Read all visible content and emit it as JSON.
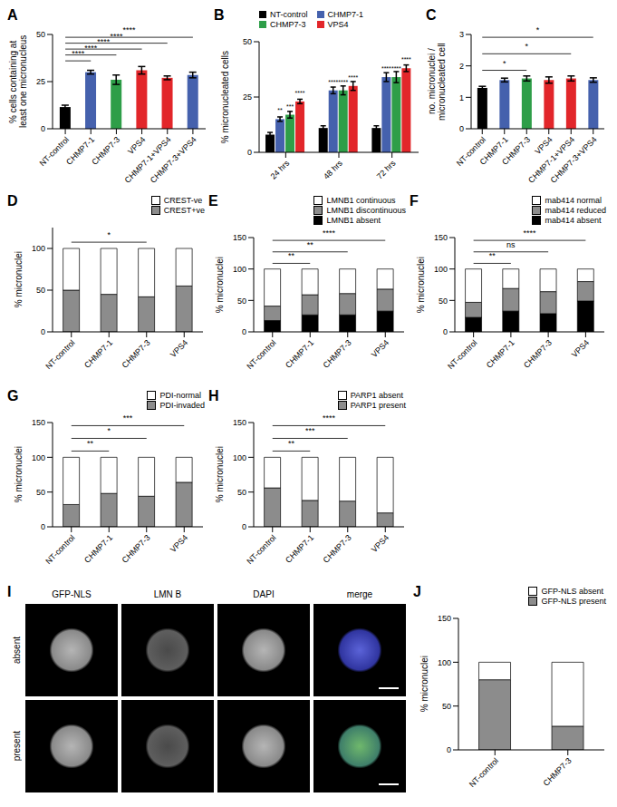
{
  "chart_data": [
    {
      "panel": "A",
      "type": "bar",
      "categories": [
        "NT-control",
        "CHMP7-1",
        "CHMP7-3",
        "VPS4",
        "CHMP7-1+VPS4",
        "CHMP7-3+VPS4"
      ],
      "values": [
        11.5,
        30,
        26,
        31,
        27,
        28.5
      ],
      "errors": [
        1,
        1,
        2.5,
        2,
        1,
        1.5
      ],
      "colors": [
        "#000000",
        "#4561ad",
        "#2e9e48",
        "#e2262a",
        "#e2262a",
        "#4561ad"
      ],
      "ylabel": "% cells containing at least one micronucleus",
      "ylim": [
        0,
        50
      ],
      "yticks": [
        0,
        25,
        50
      ],
      "annotations": [
        {
          "from": "NT-control",
          "to": "CHMP7-1",
          "label": "****"
        },
        {
          "from": "NT-control",
          "to": "CHMP7-3",
          "label": "****"
        },
        {
          "from": "NT-control",
          "to": "VPS4",
          "label": "****"
        },
        {
          "from": "NT-control",
          "to": "CHMP7-1+VPS4",
          "label": "****"
        },
        {
          "from": "NT-control",
          "to": "CHMP7-3+VPS4",
          "label": "****"
        }
      ]
    },
    {
      "panel": "B",
      "type": "bar",
      "categories": [
        "24 hrs",
        "48 hrs",
        "72 hrs"
      ],
      "ylabel": "% micronucleated cells",
      "ylim": [
        0,
        50
      ],
      "yticks": [
        0,
        25,
        50
      ],
      "legend": "top",
      "series": [
        {
          "name": "NT-control",
          "color": "#000000",
          "values": [
            8,
            11,
            11
          ],
          "errors": [
            1,
            1,
            1
          ]
        },
        {
          "name": "CHMP7-1",
          "color": "#4561ad",
          "values": [
            15,
            28,
            34
          ],
          "errors": [
            1,
            1.5,
            2
          ],
          "annotations": [
            "**",
            "****",
            "****"
          ]
        },
        {
          "name": "CHMP7-3",
          "color": "#2e9e48",
          "values": [
            17,
            28,
            34
          ],
          "errors": [
            1.5,
            2,
            2.5
          ],
          "annotations": [
            "***",
            "****",
            "****"
          ]
        },
        {
          "name": "VPS4",
          "color": "#e2262a",
          "values": [
            23,
            30,
            38
          ],
          "errors": [
            1,
            2,
            1.5
          ],
          "annotations": [
            "****",
            "****",
            "****"
          ]
        }
      ]
    },
    {
      "panel": "C",
      "type": "bar",
      "categories": [
        "NT-control",
        "CHMP7-1",
        "CHMP7-3",
        "VPS4",
        "CHMP7-1+VPS4",
        "CHMP7-3+VPS4"
      ],
      "values": [
        1.3,
        1.55,
        1.6,
        1.55,
        1.6,
        1.55
      ],
      "errors": [
        0.05,
        0.06,
        0.08,
        0.1,
        0.08,
        0.07
      ],
      "colors": [
        "#000000",
        "#4561ad",
        "#2e9e48",
        "#e2262a",
        "#e2262a",
        "#4561ad"
      ],
      "ylabel": "no. micronuclei / micronucleated cell",
      "ylim": [
        0,
        3
      ],
      "yticks": [
        0,
        1,
        2,
        3
      ],
      "annotations": [
        {
          "from": "NT-control",
          "to": "CHMP7-3",
          "label": "*"
        },
        {
          "from": "NT-control",
          "to": "CHMP7-1+VPS4",
          "label": "*"
        },
        {
          "from": "NT-control",
          "to": "CHMP7-3+VPS4",
          "label": "*"
        }
      ]
    },
    {
      "panel": "D",
      "type": "bar",
      "stacked": true,
      "legend": "top",
      "categories": [
        "NT-control",
        "CHMP7-1",
        "CHMP7-3",
        "VPS4"
      ],
      "ylabel": "% micronuclei",
      "ylim": [
        0,
        125
      ],
      "yticks": [
        0,
        50,
        100
      ],
      "series": [
        {
          "name": "CREST+ve",
          "color": "#8c8c8c",
          "values": [
            50,
            45,
            42,
            55
          ]
        },
        {
          "name": "CREST-ve",
          "color": "#ffffff",
          "values": [
            50,
            55,
            58,
            45
          ]
        }
      ],
      "annotations": [
        {
          "from": "NT-control",
          "to": "CHMP7-3",
          "label": "*"
        }
      ]
    },
    {
      "panel": "E",
      "type": "bar",
      "stacked": true,
      "legend": "top",
      "categories": [
        "NT-control",
        "CHMP7-1",
        "CHMP7-3",
        "VPS4"
      ],
      "ylabel": "% micronuclei",
      "ylim": [
        0,
        150
      ],
      "yticks": [
        0,
        50,
        100,
        150
      ],
      "series": [
        {
          "name": "LMNB1 absent",
          "color": "#000000",
          "values": [
            18,
            27,
            27,
            33
          ]
        },
        {
          "name": "LMNB1 discontinuous",
          "color": "#8c8c8c",
          "values": [
            23,
            32,
            34,
            35
          ]
        },
        {
          "name": "LMNB1 continuous",
          "color": "#ffffff",
          "values": [
            59,
            41,
            39,
            32
          ]
        }
      ],
      "annotations": [
        {
          "from": "NT-control",
          "to": "CHMP7-1",
          "label": "**"
        },
        {
          "from": "NT-control",
          "to": "CHMP7-3",
          "label": "**"
        },
        {
          "from": "NT-control",
          "to": "VPS4",
          "label": "****"
        }
      ]
    },
    {
      "panel": "F",
      "type": "bar",
      "stacked": true,
      "legend": "top",
      "categories": [
        "NT-control",
        "CHMP7-1",
        "CHMP7-3",
        "VPS4"
      ],
      "ylabel": "% micronuclei",
      "ylim": [
        0,
        150
      ],
      "yticks": [
        0,
        50,
        100,
        150
      ],
      "series": [
        {
          "name": "mab414 absent",
          "color": "#000000",
          "values": [
            23,
            33,
            29,
            49
          ]
        },
        {
          "name": "mab414 reduced",
          "color": "#8c8c8c",
          "values": [
            24,
            36,
            35,
            31
          ]
        },
        {
          "name": "mab414 normal",
          "color": "#ffffff",
          "values": [
            53,
            31,
            36,
            20
          ]
        }
      ],
      "annotations": [
        {
          "from": "NT-control",
          "to": "CHMP7-1",
          "label": "**"
        },
        {
          "from": "NT-control",
          "to": "CHMP7-3",
          "label": "ns"
        },
        {
          "from": "NT-control",
          "to": "VPS4",
          "label": "****"
        }
      ]
    },
    {
      "panel": "G",
      "type": "bar",
      "stacked": true,
      "legend": "top",
      "categories": [
        "NT-control",
        "CHMP7-1",
        "CHMP7-3",
        "VPS4"
      ],
      "ylabel": "% micronuclei",
      "ylim": [
        0,
        150
      ],
      "yticks": [
        0,
        50,
        100,
        150
      ],
      "series": [
        {
          "name": "PDI-invaded",
          "color": "#8c8c8c",
          "values": [
            32,
            48,
            44,
            64
          ]
        },
        {
          "name": "PDI-normal",
          "color": "#ffffff",
          "values": [
            68,
            52,
            56,
            36
          ]
        }
      ],
      "annotations": [
        {
          "from": "NT-control",
          "to": "CHMP7-1",
          "label": "**"
        },
        {
          "from": "NT-control",
          "to": "CHMP7-3",
          "label": "*"
        },
        {
          "from": "NT-control",
          "to": "VPS4",
          "label": "***"
        }
      ]
    },
    {
      "panel": "H",
      "type": "bar",
      "stacked": true,
      "legend": "top",
      "categories": [
        "NT-control",
        "CHMP7-1",
        "CHMP7-3",
        "VPS4"
      ],
      "ylabel": "% micronuclei",
      "ylim": [
        0,
        150
      ],
      "yticks": [
        0,
        50,
        100,
        150
      ],
      "series": [
        {
          "name": "PARP1 present",
          "color": "#8c8c8c",
          "values": [
            56,
            38,
            37,
            20
          ]
        },
        {
          "name": "PARP1 absent",
          "color": "#ffffff",
          "values": [
            44,
            62,
            63,
            80
          ]
        }
      ],
      "annotations": [
        {
          "from": "NT-control",
          "to": "CHMP7-1",
          "label": "**"
        },
        {
          "from": "NT-control",
          "to": "CHMP7-3",
          "label": "***"
        },
        {
          "from": "NT-control",
          "to": "VPS4",
          "label": "****"
        }
      ]
    },
    {
      "panel": "J",
      "type": "bar",
      "stacked": true,
      "legend": "top",
      "categories": [
        "NT-control",
        "CHMP7-3"
      ],
      "ylabel": "% micronuclei",
      "ylim": [
        0,
        150
      ],
      "yticks": [
        0,
        50,
        100,
        150
      ],
      "series": [
        {
          "name": "GFP-NLS present",
          "color": "#8c8c8c",
          "values": [
            80,
            27
          ]
        },
        {
          "name": "GFP-NLS absent",
          "color": "#ffffff",
          "values": [
            20,
            73
          ]
        }
      ]
    }
  ],
  "image_panel": {
    "panel": "I",
    "columns": [
      "GFP-NLS",
      "LMN B",
      "DAPI",
      "merge"
    ],
    "rows": [
      "absent",
      "present"
    ]
  }
}
